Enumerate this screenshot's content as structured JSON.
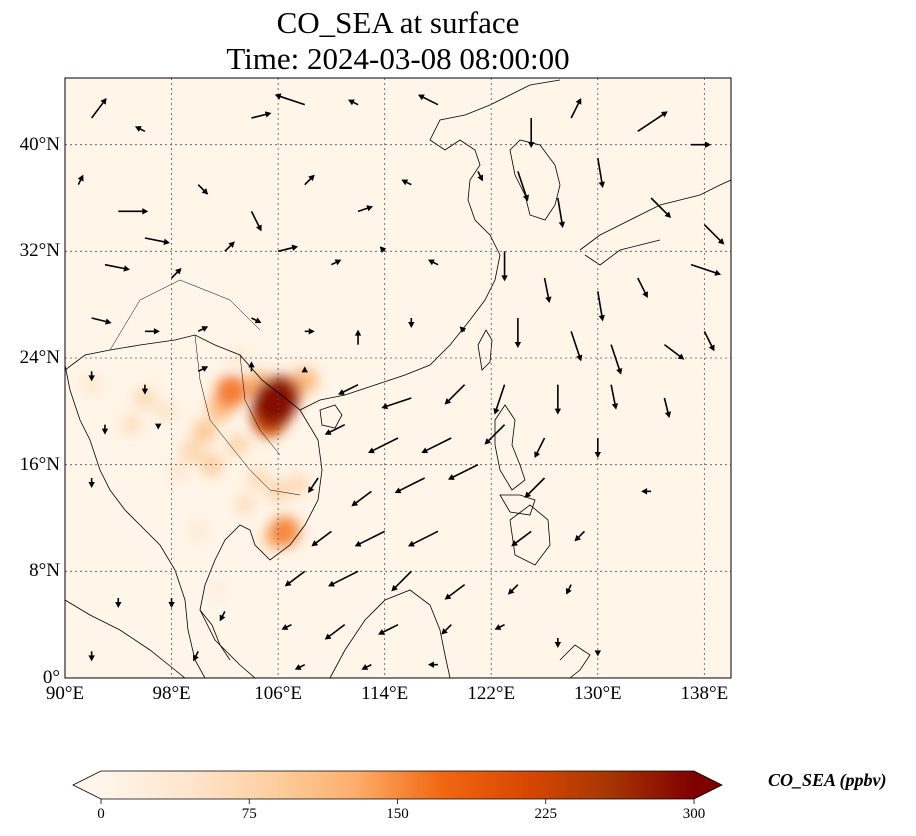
{
  "title": {
    "line1": "CO_SEA at surface",
    "line2": "Time: 2024-03-08 08:00:00"
  },
  "map": {
    "lon_range": [
      90,
      140
    ],
    "lat_range": [
      0,
      45
    ],
    "lon_ticks": [
      {
        "value": 90,
        "label": "90°E"
      },
      {
        "value": 98,
        "label": "98°E"
      },
      {
        "value": 106,
        "label": "106°E"
      },
      {
        "value": 114,
        "label": "114°E"
      },
      {
        "value": 122,
        "label": "122°E"
      },
      {
        "value": 130,
        "label": "130°E"
      },
      {
        "value": 138,
        "label": "138°E"
      }
    ],
    "lat_ticks": [
      {
        "value": 0,
        "label": "0°"
      },
      {
        "value": 8,
        "label": "8°N"
      },
      {
        "value": 16,
        "label": "16°N"
      },
      {
        "value": 24,
        "label": "24°N"
      },
      {
        "value": 32,
        "label": "32°N"
      },
      {
        "value": 40,
        "label": "40°N"
      }
    ],
    "gridlines": true,
    "background_color": "#fff5e8",
    "coastline_color": "#000000",
    "plumes": [
      {
        "lon": 105.8,
        "lat": 20.8,
        "value": 300
      },
      {
        "lon": 105.5,
        "lat": 20.0,
        "value": 260
      },
      {
        "lon": 106.3,
        "lat": 21.3,
        "value": 240
      },
      {
        "lon": 105.3,
        "lat": 19.3,
        "value": 200
      },
      {
        "lon": 102.5,
        "lat": 21.5,
        "value": 170
      },
      {
        "lon": 101.7,
        "lat": 20.3,
        "value": 120
      },
      {
        "lon": 108.0,
        "lat": 22.3,
        "value": 120
      },
      {
        "lon": 104.5,
        "lat": 22.0,
        "value": 130
      },
      {
        "lon": 106.5,
        "lat": 11.0,
        "value": 160
      },
      {
        "lon": 105.8,
        "lat": 10.5,
        "value": 110
      },
      {
        "lon": 100.5,
        "lat": 18.5,
        "value": 100
      },
      {
        "lon": 99.5,
        "lat": 17.0,
        "value": 80
      },
      {
        "lon": 101.0,
        "lat": 16.0,
        "value": 90
      },
      {
        "lon": 103.0,
        "lat": 17.5,
        "value": 80
      },
      {
        "lon": 104.5,
        "lat": 15.0,
        "value": 70
      },
      {
        "lon": 106.0,
        "lat": 14.0,
        "value": 80
      },
      {
        "lon": 107.5,
        "lat": 14.5,
        "value": 70
      },
      {
        "lon": 103.5,
        "lat": 13.0,
        "value": 60
      },
      {
        "lon": 96.0,
        "lat": 21.0,
        "value": 70
      },
      {
        "lon": 95.0,
        "lat": 19.0,
        "value": 60
      },
      {
        "lon": 97.5,
        "lat": 20.0,
        "value": 50
      },
      {
        "lon": 98.5,
        "lat": 15.5,
        "value": 45
      },
      {
        "lon": 100.0,
        "lat": 11.0,
        "value": 40
      },
      {
        "lon": 103.0,
        "lat": 24.0,
        "value": 40
      },
      {
        "lon": 101.5,
        "lat": 6.5,
        "value": 25
      },
      {
        "lon": 92.0,
        "lat": 22.0,
        "value": 45
      }
    ],
    "wind_vectors": [
      {
        "lon": 92,
        "lat": 42,
        "u": 1.5,
        "v": 2
      },
      {
        "lon": 96,
        "lat": 41,
        "u": -1,
        "v": 0.5
      },
      {
        "lon": 104,
        "lat": 42,
        "u": 2,
        "v": 0.5
      },
      {
        "lon": 108,
        "lat": 43,
        "u": -3,
        "v": 1
      },
      {
        "lon": 112,
        "lat": 43,
        "u": -1,
        "v": 0.5
      },
      {
        "lon": 118,
        "lat": 43,
        "u": -2,
        "v": 1
      },
      {
        "lon": 125,
        "lat": 42,
        "u": 0,
        "v": -3
      },
      {
        "lon": 128,
        "lat": 42,
        "u": 1,
        "v": 2
      },
      {
        "lon": 133,
        "lat": 41,
        "u": 3,
        "v": 2
      },
      {
        "lon": 137,
        "lat": 40,
        "u": 2,
        "v": 0
      },
      {
        "lon": 91,
        "lat": 37,
        "u": 0.5,
        "v": 1
      },
      {
        "lon": 94,
        "lat": 35,
        "u": 3,
        "v": 0
      },
      {
        "lon": 96,
        "lat": 33,
        "u": 2.5,
        "v": -0.5
      },
      {
        "lon": 100,
        "lat": 37,
        "u": 1,
        "v": -1
      },
      {
        "lon": 104,
        "lat": 35,
        "u": 1,
        "v": -2
      },
      {
        "lon": 108,
        "lat": 37,
        "u": 1,
        "v": 1
      },
      {
        "lon": 112,
        "lat": 35,
        "u": 1.5,
        "v": 0.5
      },
      {
        "lon": 116,
        "lat": 37,
        "u": -1,
        "v": 0.5
      },
      {
        "lon": 121,
        "lat": 38,
        "u": 0.5,
        "v": -1
      },
      {
        "lon": 124,
        "lat": 38,
        "u": 1,
        "v": -3
      },
      {
        "lon": 127,
        "lat": 36,
        "u": 0.5,
        "v": -3
      },
      {
        "lon": 130,
        "lat": 39,
        "u": 0.5,
        "v": -3
      },
      {
        "lon": 134,
        "lat": 36,
        "u": 2,
        "v": -2
      },
      {
        "lon": 138,
        "lat": 34,
        "u": 2,
        "v": -2
      },
      {
        "lon": 93,
        "lat": 31,
        "u": 2.5,
        "v": -0.5
      },
      {
        "lon": 98,
        "lat": 30,
        "u": 1,
        "v": 1
      },
      {
        "lon": 102,
        "lat": 32,
        "u": 1,
        "v": 1
      },
      {
        "lon": 106,
        "lat": 32,
        "u": 2,
        "v": 0.5
      },
      {
        "lon": 110,
        "lat": 31,
        "u": 1,
        "v": 0.5
      },
      {
        "lon": 114,
        "lat": 32,
        "u": -0.5,
        "v": 0.5
      },
      {
        "lon": 118,
        "lat": 31,
        "u": -1,
        "v": 0.5
      },
      {
        "lon": 123,
        "lat": 32,
        "u": 0,
        "v": -3
      },
      {
        "lon": 126,
        "lat": 30,
        "u": 0.5,
        "v": -2.5
      },
      {
        "lon": 130,
        "lat": 29,
        "u": 0.5,
        "v": -3
      },
      {
        "lon": 133,
        "lat": 30,
        "u": 1,
        "v": -2
      },
      {
        "lon": 137,
        "lat": 31,
        "u": 3,
        "v": -1
      },
      {
        "lon": 92,
        "lat": 27,
        "u": 2,
        "v": -0.5
      },
      {
        "lon": 96,
        "lat": 26,
        "u": 1.5,
        "v": 0
      },
      {
        "lon": 100,
        "lat": 26,
        "u": 1,
        "v": 0.5
      },
      {
        "lon": 104,
        "lat": 27,
        "u": 1,
        "v": -0.5
      },
      {
        "lon": 108,
        "lat": 26,
        "u": 1,
        "v": 0
      },
      {
        "lon": 112,
        "lat": 25,
        "u": 0,
        "v": 1.5
      },
      {
        "lon": 116,
        "lat": 27,
        "u": 0,
        "v": -1
      },
      {
        "lon": 120,
        "lat": 26,
        "u": -0.5,
        "v": 0.5
      },
      {
        "lon": 124,
        "lat": 27,
        "u": 0,
        "v": -3
      },
      {
        "lon": 128,
        "lat": 26,
        "u": 1,
        "v": -3
      },
      {
        "lon": 131,
        "lat": 25,
        "u": 1,
        "v": -3
      },
      {
        "lon": 135,
        "lat": 25,
        "u": 2,
        "v": -1.5
      },
      {
        "lon": 138,
        "lat": 26,
        "u": 1,
        "v": -2
      },
      {
        "lon": 92,
        "lat": 23,
        "u": 0,
        "v": -1
      },
      {
        "lon": 96,
        "lat": 22,
        "u": 0,
        "v": -1
      },
      {
        "lon": 100,
        "lat": 23,
        "u": 1,
        "v": 0.5
      },
      {
        "lon": 104,
        "lat": 23,
        "u": 0,
        "v": 1
      },
      {
        "lon": 108,
        "lat": 23,
        "u": 0,
        "v": 0.5
      },
      {
        "lon": 112,
        "lat": 22,
        "u": -2,
        "v": -1
      },
      {
        "lon": 116,
        "lat": 21,
        "u": -3,
        "v": -1
      },
      {
        "lon": 120,
        "lat": 22,
        "u": -2,
        "v": -2
      },
      {
        "lon": 123,
        "lat": 22,
        "u": -1,
        "v": -3
      },
      {
        "lon": 127,
        "lat": 22,
        "u": 0,
        "v": -3
      },
      {
        "lon": 131,
        "lat": 22,
        "u": 0.5,
        "v": -2.5
      },
      {
        "lon": 135,
        "lat": 21,
        "u": 0.5,
        "v": -2
      },
      {
        "lon": 93,
        "lat": 19,
        "u": 0,
        "v": -1
      },
      {
        "lon": 97,
        "lat": 19,
        "u": 0,
        "v": -0.5
      },
      {
        "lon": 111,
        "lat": 19,
        "u": -2,
        "v": -1
      },
      {
        "lon": 115,
        "lat": 18,
        "u": -3,
        "v": -1.5
      },
      {
        "lon": 119,
        "lat": 18,
        "u": -3,
        "v": -1.5
      },
      {
        "lon": 123,
        "lat": 19,
        "u": -2,
        "v": -2
      },
      {
        "lon": 126,
        "lat": 18,
        "u": -1,
        "v": -2
      },
      {
        "lon": 130,
        "lat": 18,
        "u": 0,
        "v": -2
      },
      {
        "lon": 92,
        "lat": 15,
        "u": 0,
        "v": -1
      },
      {
        "lon": 109,
        "lat": 15,
        "u": -1,
        "v": -1.5
      },
      {
        "lon": 113,
        "lat": 14,
        "u": -2,
        "v": -1.5
      },
      {
        "lon": 117,
        "lat": 15,
        "u": -3,
        "v": -1.5
      },
      {
        "lon": 121,
        "lat": 16,
        "u": -3,
        "v": -1.5
      },
      {
        "lon": 126,
        "lat": 15,
        "u": -2,
        "v": -2
      },
      {
        "lon": 134,
        "lat": 14,
        "u": -1,
        "v": 0
      },
      {
        "lon": 110,
        "lat": 11,
        "u": -2,
        "v": -1.5
      },
      {
        "lon": 114,
        "lat": 11,
        "u": -3,
        "v": -1.5
      },
      {
        "lon": 118,
        "lat": 11,
        "u": -3,
        "v": -1.5
      },
      {
        "lon": 125,
        "lat": 11,
        "u": -2,
        "v": -1.5
      },
      {
        "lon": 129,
        "lat": 11,
        "u": -1,
        "v": -1
      },
      {
        "lon": 108,
        "lat": 8,
        "u": -2,
        "v": -1.5
      },
      {
        "lon": 112,
        "lat": 8,
        "u": -3,
        "v": -1.5
      },
      {
        "lon": 116,
        "lat": 8,
        "u": -2,
        "v": -2
      },
      {
        "lon": 120,
        "lat": 7,
        "u": -2,
        "v": -1.5
      },
      {
        "lon": 124,
        "lat": 7,
        "u": -1,
        "v": -1
      },
      {
        "lon": 128,
        "lat": 7,
        "u": -0.5,
        "v": -1
      },
      {
        "lon": 94,
        "lat": 6,
        "u": 0,
        "v": -1
      },
      {
        "lon": 98,
        "lat": 6,
        "u": 0,
        "v": -1
      },
      {
        "lon": 102,
        "lat": 5,
        "u": -0.5,
        "v": -1
      },
      {
        "lon": 107,
        "lat": 4,
        "u": -1,
        "v": -0.5
      },
      {
        "lon": 111,
        "lat": 4,
        "u": -2,
        "v": -1.5
      },
      {
        "lon": 115,
        "lat": 4,
        "u": -2,
        "v": -1
      },
      {
        "lon": 119,
        "lat": 4,
        "u": -1,
        "v": -1
      },
      {
        "lon": 123,
        "lat": 4,
        "u": -1,
        "v": -0.5
      },
      {
        "lon": 127,
        "lat": 3,
        "u": 0,
        "v": -1
      },
      {
        "lon": 92,
        "lat": 2,
        "u": 0,
        "v": -1
      },
      {
        "lon": 100,
        "lat": 2,
        "u": -0.5,
        "v": -1
      },
      {
        "lon": 108,
        "lat": 1,
        "u": -1,
        "v": -0.5
      },
      {
        "lon": 113,
        "lat": 1,
        "u": -1,
        "v": -0.5
      },
      {
        "lon": 118,
        "lat": 1,
        "u": -1,
        "v": 0
      },
      {
        "lon": 130,
        "lat": 2,
        "u": 0,
        "v": -0.5
      }
    ]
  },
  "colorbar": {
    "label": "CO_SEA (ppbv)",
    "min": 0,
    "max": 300,
    "extend": "both",
    "ticks": [
      {
        "value": 0,
        "label": "0"
      },
      {
        "value": 75,
        "label": "75"
      },
      {
        "value": 150,
        "label": "150"
      },
      {
        "value": 225,
        "label": "225"
      },
      {
        "value": 300,
        "label": "300"
      }
    ],
    "colors": [
      "#fff5eb",
      "#fee6ce",
      "#fdd0a2",
      "#fdae6b",
      "#f16913",
      "#d94801",
      "#a63603",
      "#7f0000"
    ]
  }
}
